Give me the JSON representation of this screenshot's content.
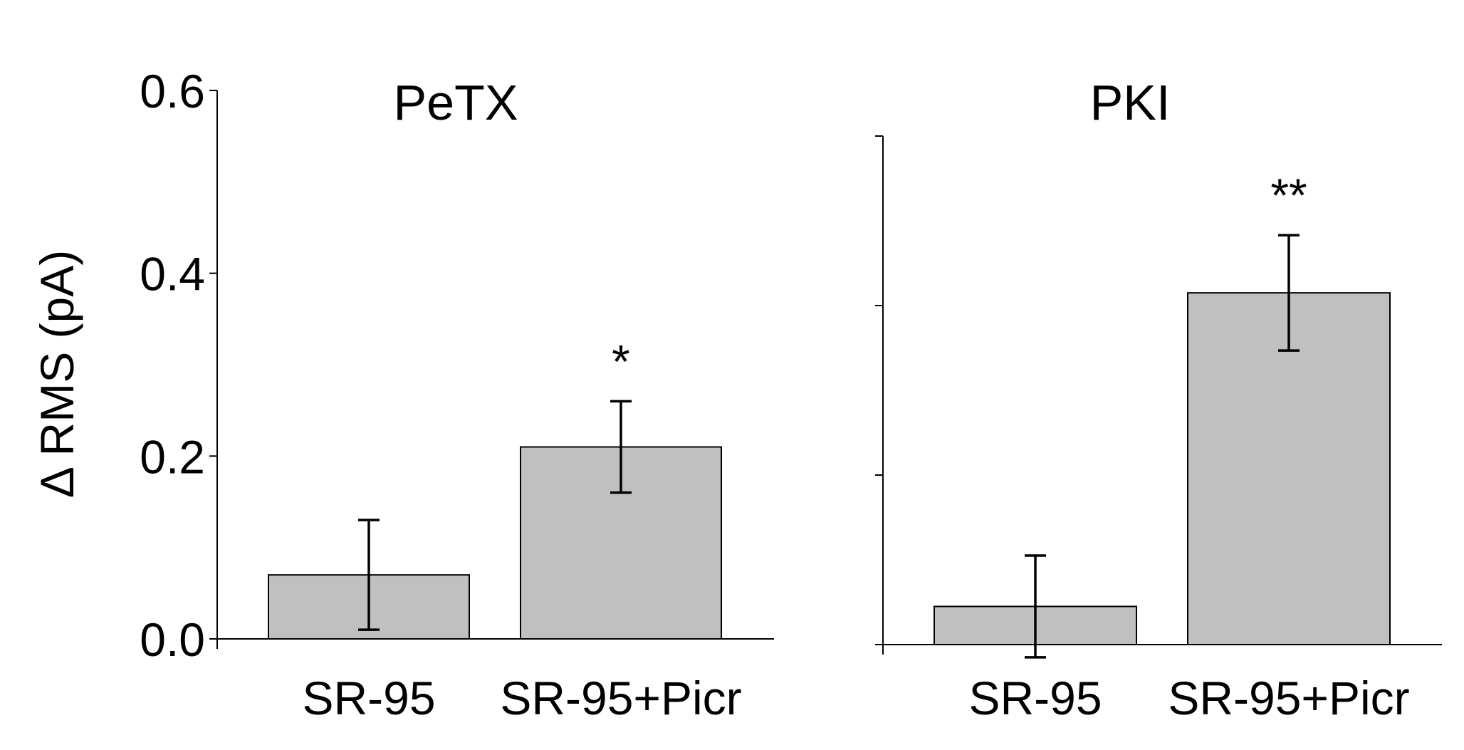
{
  "ylabel": "Δ RMS (pA)",
  "colors": {
    "bar_fill": "#c0c0c0",
    "bar_stroke": "#000000",
    "axis": "#000000"
  },
  "chart_data": [
    {
      "type": "bar",
      "title": "PeTX",
      "categories": [
        "SR-95",
        "SR-95+Picr"
      ],
      "values": [
        0.07,
        0.21
      ],
      "error": [
        0.06,
        0.05
      ],
      "significance": [
        "",
        "*"
      ],
      "ylabel": "Δ RMS (pA)",
      "ylim": [
        0,
        0.6
      ],
      "yticks": [
        "0.0",
        "0.2",
        "0.4",
        "0.6"
      ],
      "grid": false
    },
    {
      "type": "bar",
      "title": "PKI",
      "categories": [
        "SR-95",
        "SR-95+Picr"
      ],
      "values": [
        0.045,
        0.415
      ],
      "error": [
        0.06,
        0.068
      ],
      "significance": [
        "",
        "**"
      ],
      "ylim": [
        0,
        0.6
      ],
      "yticks": [
        "",
        "",
        "",
        ""
      ],
      "grid": false
    }
  ]
}
